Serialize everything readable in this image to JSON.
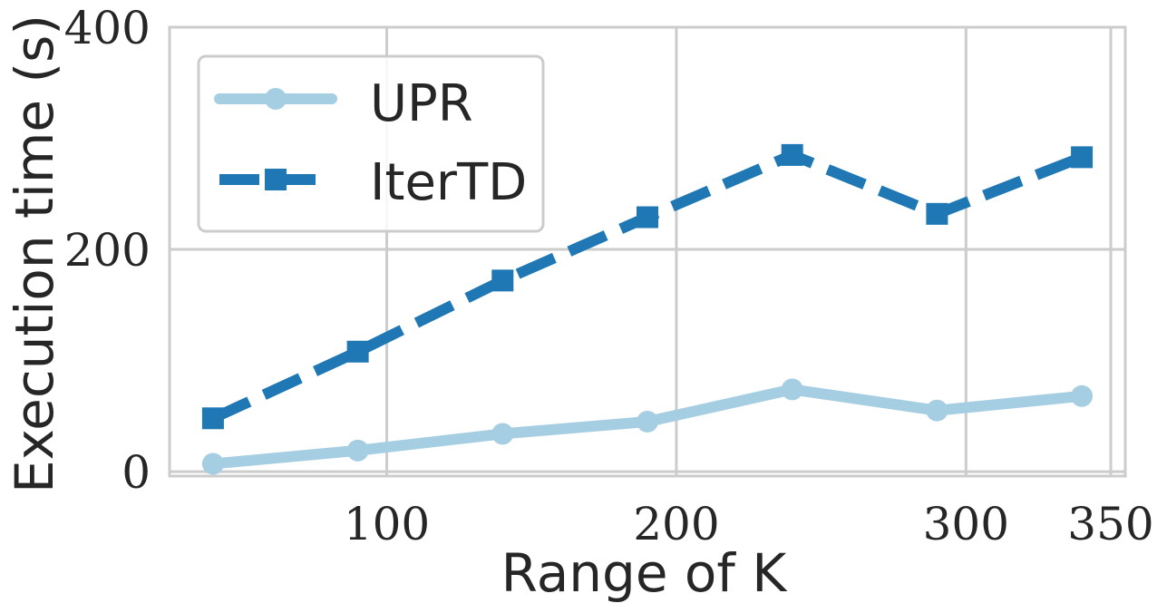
{
  "chart_data": {
    "type": "line",
    "xlabel": "Range of K",
    "ylabel": "Execution time (s)",
    "xlim": [
      25,
      355
    ],
    "ylim": [
      -4,
      400
    ],
    "xticks": [
      100,
      200,
      300,
      350
    ],
    "yticks": [
      0,
      200,
      400
    ],
    "grid": true,
    "legend_position": "top-left",
    "series": [
      {
        "name": "UPR",
        "color": "#a6cee3",
        "line_style": "solid",
        "marker": "circle",
        "x": [
          40,
          90,
          140,
          190,
          240,
          290,
          340
        ],
        "y": [
          7,
          19,
          34,
          45,
          74,
          55,
          68
        ]
      },
      {
        "name": "IterTD",
        "color": "#1f78b4",
        "line_style": "dashed",
        "marker": "square",
        "x": [
          40,
          90,
          140,
          190,
          240,
          290,
          340
        ],
        "y": [
          48,
          108,
          172,
          229,
          285,
          232,
          283
        ]
      }
    ]
  }
}
